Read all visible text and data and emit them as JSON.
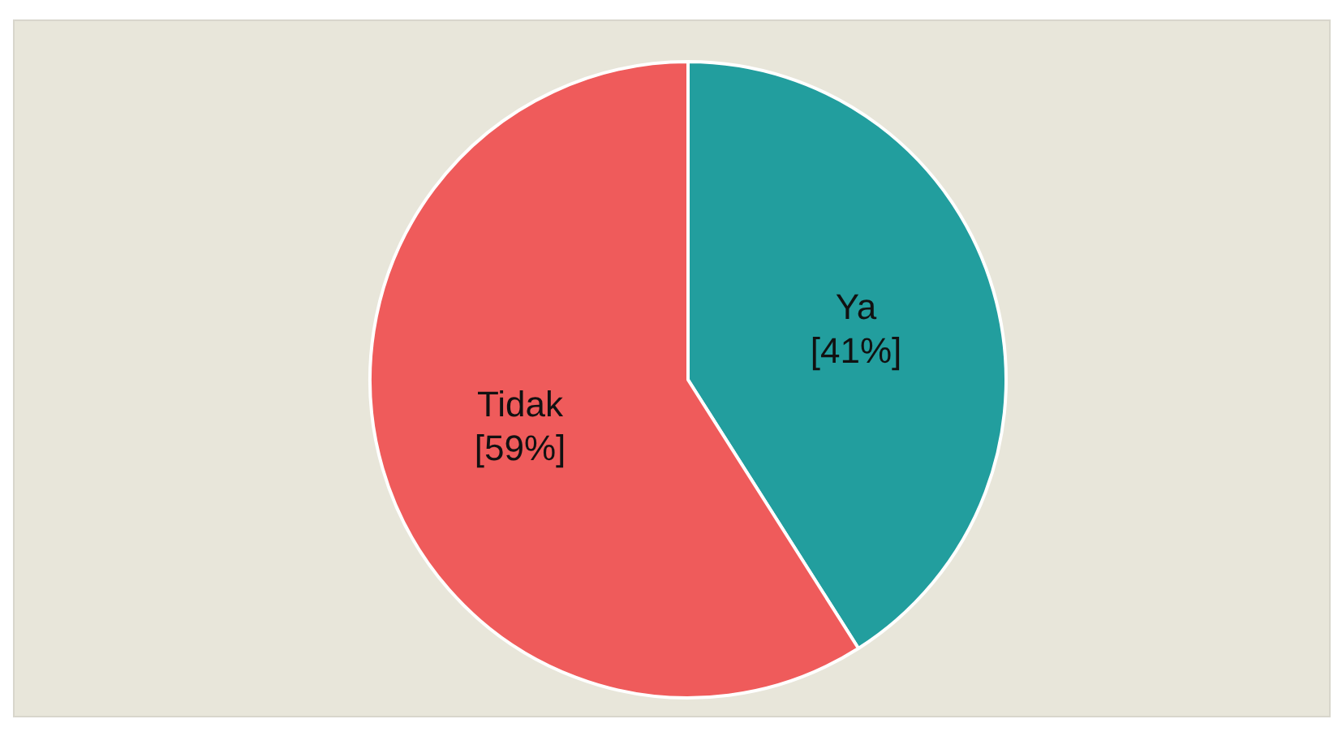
{
  "chart_data": {
    "type": "pie",
    "categories": [
      "Ya",
      "Tidak"
    ],
    "values": [
      41,
      59
    ],
    "colors": [
      "#229e9e",
      "#ef5b5b"
    ],
    "value_labels": [
      "[41%]",
      "[59%]"
    ],
    "legend": false
  }
}
